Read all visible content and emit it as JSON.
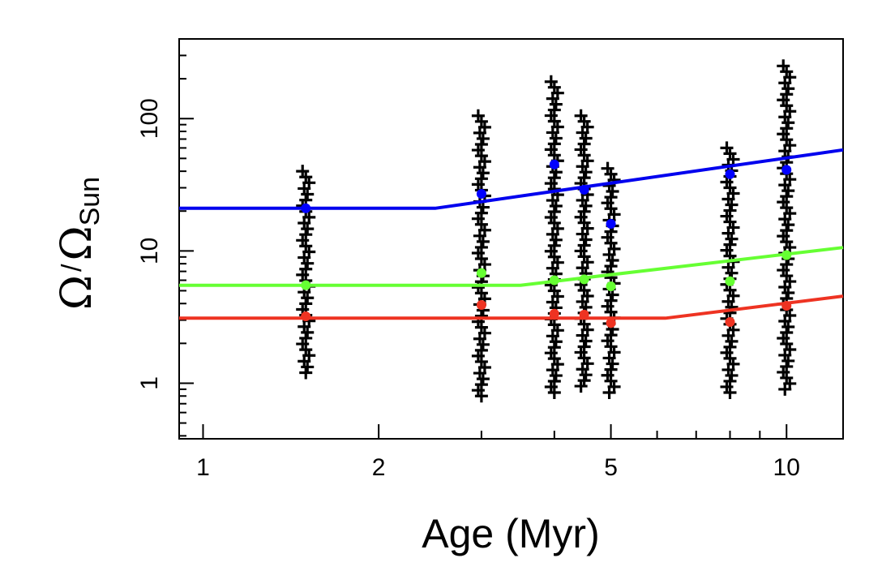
{
  "chart_data": {
    "type": "scatter",
    "title": "",
    "xlabel": "Age (Myr)",
    "ylabel": {
      "main": "Ω",
      "slash": "/",
      "denom": "Ω",
      "sub": "Sun"
    },
    "x_scale": "log",
    "y_scale": "log",
    "xlim": [
      0.91,
      12.5
    ],
    "ylim": [
      0.38,
      400
    ],
    "grid": false,
    "x_ticks": [
      {
        "value": 1,
        "label": "1"
      },
      {
        "value": 2,
        "label": "2"
      },
      {
        "value": 5,
        "label": "5"
      },
      {
        "value": 10,
        "label": "10"
      }
    ],
    "x_minor_ticks": [
      3,
      4,
      6,
      7,
      8,
      9
    ],
    "y_ticks": [
      {
        "value": 1,
        "label": "1"
      },
      {
        "value": 10,
        "label": "10"
      },
      {
        "value": 100,
        "label": "100"
      }
    ],
    "y_minor_ticks": [
      0.4,
      0.5,
      0.6,
      0.7,
      0.8,
      0.9,
      2,
      3,
      4,
      5,
      6,
      7,
      8,
      9,
      20,
      30,
      40,
      50,
      60,
      70,
      80,
      90,
      200,
      300
    ],
    "observations": [
      {
        "age": 1.5,
        "min": 1.2,
        "max": 40
      },
      {
        "age": 3.0,
        "min": 0.8,
        "max": 105
      },
      {
        "age": 4.0,
        "min": 0.85,
        "max": 190
      },
      {
        "age": 4.5,
        "min": 0.95,
        "max": 105
      },
      {
        "age": 5.0,
        "min": 0.85,
        "max": 42
      },
      {
        "age": 8.0,
        "min": 0.85,
        "max": 60
      },
      {
        "age": 10.0,
        "min": 0.9,
        "max": 250
      }
    ],
    "percentiles": [
      {
        "color": "#0000ff",
        "points": [
          [
            1.5,
            21
          ],
          [
            3.0,
            27
          ],
          [
            4.0,
            45
          ],
          [
            4.5,
            29
          ],
          [
            5.0,
            16
          ],
          [
            8.0,
            38
          ],
          [
            10.0,
            41
          ]
        ]
      },
      {
        "color": "#66ff33",
        "points": [
          [
            1.5,
            5.5
          ],
          [
            3.0,
            6.8
          ],
          [
            4.0,
            6.0
          ],
          [
            4.5,
            6.1
          ],
          [
            5.0,
            5.4
          ],
          [
            8.0,
            5.9
          ],
          [
            10.0,
            9.3
          ]
        ]
      },
      {
        "color": "#ee3322",
        "points": [
          [
            1.5,
            3.2
          ],
          [
            3.0,
            3.9
          ],
          [
            4.0,
            3.35
          ],
          [
            4.5,
            3.3
          ],
          [
            5.0,
            2.85
          ],
          [
            8.0,
            2.9
          ],
          [
            10.0,
            3.85
          ]
        ]
      }
    ],
    "models": [
      {
        "color": "#0000ee",
        "points": [
          [
            0.91,
            21
          ],
          [
            2.5,
            21
          ],
          [
            12.5,
            58
          ]
        ]
      },
      {
        "color": "#66ff33",
        "points": [
          [
            0.91,
            5.5
          ],
          [
            3.5,
            5.5
          ],
          [
            12.5,
            10.6
          ]
        ]
      },
      {
        "color": "#ee3322",
        "points": [
          [
            0.91,
            3.1
          ],
          [
            6.2,
            3.1
          ],
          [
            12.5,
            4.55
          ]
        ]
      }
    ]
  }
}
